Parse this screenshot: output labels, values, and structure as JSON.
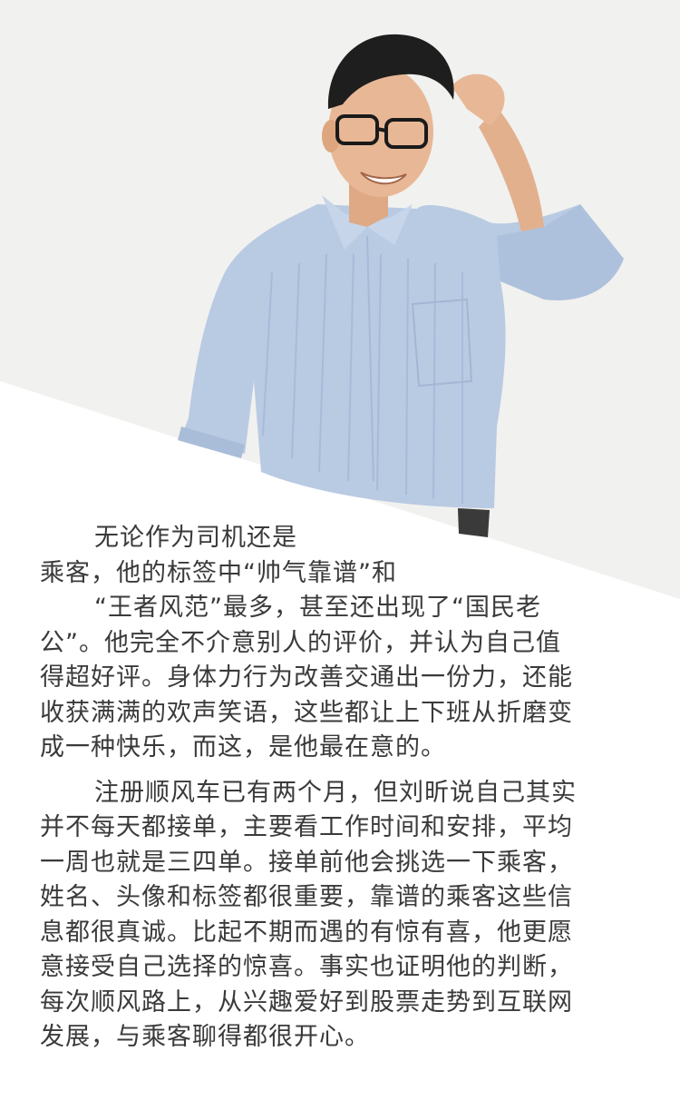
{
  "colors": {
    "background_top": "#f1f1ef",
    "background_bottom": "#ffffff",
    "text": "#3a3a3a",
    "shirt": "#b9cae3",
    "hair": "#1e1e1e",
    "skin": "#e8b896"
  },
  "paragraph1": {
    "lines": [
      "无论作为司机还是",
      "乘客，他的标签中“帅气靠谱”和",
      "“王者风范”最多，甚至还出现了“国民老",
      "公”。他完全不介意别人的评价，并认为自己值",
      "得超好评。身体力行为改善交通出一份力，还能",
      "收获满满的欢声笑语，这些都让上下班从折磨变",
      "成一种快乐，而这，是他最在意的。"
    ]
  },
  "paragraph2": {
    "lines": [
      "注册顺风车已有两个月，但刘昕说自己其实",
      "并不每天都接单，主要看工作时间和安排，平均",
      "一周也就是三四单。接单前他会挑选一下乘客，",
      "姓名、头像和标签都很重要，靠谱的乘客这些信",
      "息都很真诚。比起不期而遇的有惊有喜，他更愿",
      "意接受自己选择的惊喜。事实也证明他的判断，",
      "每次顺风路上，从兴趣爱好到股票走势到互联网",
      "发展，与乘客聊得都很开心。"
    ]
  }
}
